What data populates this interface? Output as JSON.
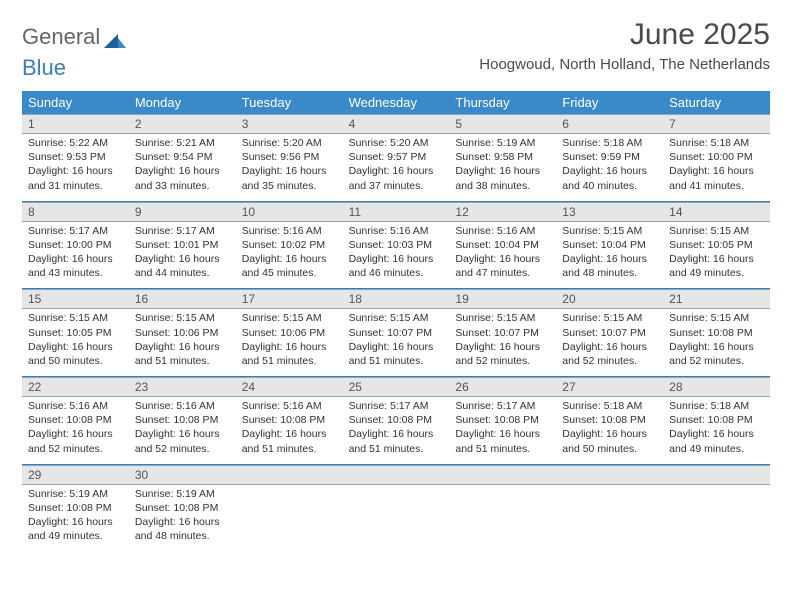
{
  "logo": {
    "part1": "General",
    "part2": "Blue"
  },
  "title": "June 2025",
  "location": "Hoogwoud, North Holland, The Netherlands",
  "colors": {
    "header_bg": "#3a89c9",
    "header_text": "#ffffff",
    "daynum_bg": "#e6e6e6",
    "border": "#3a7fb0",
    "logo_gray": "#666666",
    "logo_blue": "#3a7fc0"
  },
  "weekdays": [
    "Sunday",
    "Monday",
    "Tuesday",
    "Wednesday",
    "Thursday",
    "Friday",
    "Saturday"
  ],
  "weeks": [
    [
      {
        "num": "1",
        "sunrise": "Sunrise: 5:22 AM",
        "sunset": "Sunset: 9:53 PM",
        "daylight": "Daylight: 16 hours and 31 minutes."
      },
      {
        "num": "2",
        "sunrise": "Sunrise: 5:21 AM",
        "sunset": "Sunset: 9:54 PM",
        "daylight": "Daylight: 16 hours and 33 minutes."
      },
      {
        "num": "3",
        "sunrise": "Sunrise: 5:20 AM",
        "sunset": "Sunset: 9:56 PM",
        "daylight": "Daylight: 16 hours and 35 minutes."
      },
      {
        "num": "4",
        "sunrise": "Sunrise: 5:20 AM",
        "sunset": "Sunset: 9:57 PM",
        "daylight": "Daylight: 16 hours and 37 minutes."
      },
      {
        "num": "5",
        "sunrise": "Sunrise: 5:19 AM",
        "sunset": "Sunset: 9:58 PM",
        "daylight": "Daylight: 16 hours and 38 minutes."
      },
      {
        "num": "6",
        "sunrise": "Sunrise: 5:18 AM",
        "sunset": "Sunset: 9:59 PM",
        "daylight": "Daylight: 16 hours and 40 minutes."
      },
      {
        "num": "7",
        "sunrise": "Sunrise: 5:18 AM",
        "sunset": "Sunset: 10:00 PM",
        "daylight": "Daylight: 16 hours and 41 minutes."
      }
    ],
    [
      {
        "num": "8",
        "sunrise": "Sunrise: 5:17 AM",
        "sunset": "Sunset: 10:00 PM",
        "daylight": "Daylight: 16 hours and 43 minutes."
      },
      {
        "num": "9",
        "sunrise": "Sunrise: 5:17 AM",
        "sunset": "Sunset: 10:01 PM",
        "daylight": "Daylight: 16 hours and 44 minutes."
      },
      {
        "num": "10",
        "sunrise": "Sunrise: 5:16 AM",
        "sunset": "Sunset: 10:02 PM",
        "daylight": "Daylight: 16 hours and 45 minutes."
      },
      {
        "num": "11",
        "sunrise": "Sunrise: 5:16 AM",
        "sunset": "Sunset: 10:03 PM",
        "daylight": "Daylight: 16 hours and 46 minutes."
      },
      {
        "num": "12",
        "sunrise": "Sunrise: 5:16 AM",
        "sunset": "Sunset: 10:04 PM",
        "daylight": "Daylight: 16 hours and 47 minutes."
      },
      {
        "num": "13",
        "sunrise": "Sunrise: 5:15 AM",
        "sunset": "Sunset: 10:04 PM",
        "daylight": "Daylight: 16 hours and 48 minutes."
      },
      {
        "num": "14",
        "sunrise": "Sunrise: 5:15 AM",
        "sunset": "Sunset: 10:05 PM",
        "daylight": "Daylight: 16 hours and 49 minutes."
      }
    ],
    [
      {
        "num": "15",
        "sunrise": "Sunrise: 5:15 AM",
        "sunset": "Sunset: 10:05 PM",
        "daylight": "Daylight: 16 hours and 50 minutes."
      },
      {
        "num": "16",
        "sunrise": "Sunrise: 5:15 AM",
        "sunset": "Sunset: 10:06 PM",
        "daylight": "Daylight: 16 hours and 51 minutes."
      },
      {
        "num": "17",
        "sunrise": "Sunrise: 5:15 AM",
        "sunset": "Sunset: 10:06 PM",
        "daylight": "Daylight: 16 hours and 51 minutes."
      },
      {
        "num": "18",
        "sunrise": "Sunrise: 5:15 AM",
        "sunset": "Sunset: 10:07 PM",
        "daylight": "Daylight: 16 hours and 51 minutes."
      },
      {
        "num": "19",
        "sunrise": "Sunrise: 5:15 AM",
        "sunset": "Sunset: 10:07 PM",
        "daylight": "Daylight: 16 hours and 52 minutes."
      },
      {
        "num": "20",
        "sunrise": "Sunrise: 5:15 AM",
        "sunset": "Sunset: 10:07 PM",
        "daylight": "Daylight: 16 hours and 52 minutes."
      },
      {
        "num": "21",
        "sunrise": "Sunrise: 5:15 AM",
        "sunset": "Sunset: 10:08 PM",
        "daylight": "Daylight: 16 hours and 52 minutes."
      }
    ],
    [
      {
        "num": "22",
        "sunrise": "Sunrise: 5:16 AM",
        "sunset": "Sunset: 10:08 PM",
        "daylight": "Daylight: 16 hours and 52 minutes."
      },
      {
        "num": "23",
        "sunrise": "Sunrise: 5:16 AM",
        "sunset": "Sunset: 10:08 PM",
        "daylight": "Daylight: 16 hours and 52 minutes."
      },
      {
        "num": "24",
        "sunrise": "Sunrise: 5:16 AM",
        "sunset": "Sunset: 10:08 PM",
        "daylight": "Daylight: 16 hours and 51 minutes."
      },
      {
        "num": "25",
        "sunrise": "Sunrise: 5:17 AM",
        "sunset": "Sunset: 10:08 PM",
        "daylight": "Daylight: 16 hours and 51 minutes."
      },
      {
        "num": "26",
        "sunrise": "Sunrise: 5:17 AM",
        "sunset": "Sunset: 10:08 PM",
        "daylight": "Daylight: 16 hours and 51 minutes."
      },
      {
        "num": "27",
        "sunrise": "Sunrise: 5:18 AM",
        "sunset": "Sunset: 10:08 PM",
        "daylight": "Daylight: 16 hours and 50 minutes."
      },
      {
        "num": "28",
        "sunrise": "Sunrise: 5:18 AM",
        "sunset": "Sunset: 10:08 PM",
        "daylight": "Daylight: 16 hours and 49 minutes."
      }
    ],
    [
      {
        "num": "29",
        "sunrise": "Sunrise: 5:19 AM",
        "sunset": "Sunset: 10:08 PM",
        "daylight": "Daylight: 16 hours and 49 minutes."
      },
      {
        "num": "30",
        "sunrise": "Sunrise: 5:19 AM",
        "sunset": "Sunset: 10:08 PM",
        "daylight": "Daylight: 16 hours and 48 minutes."
      },
      null,
      null,
      null,
      null,
      null
    ]
  ]
}
